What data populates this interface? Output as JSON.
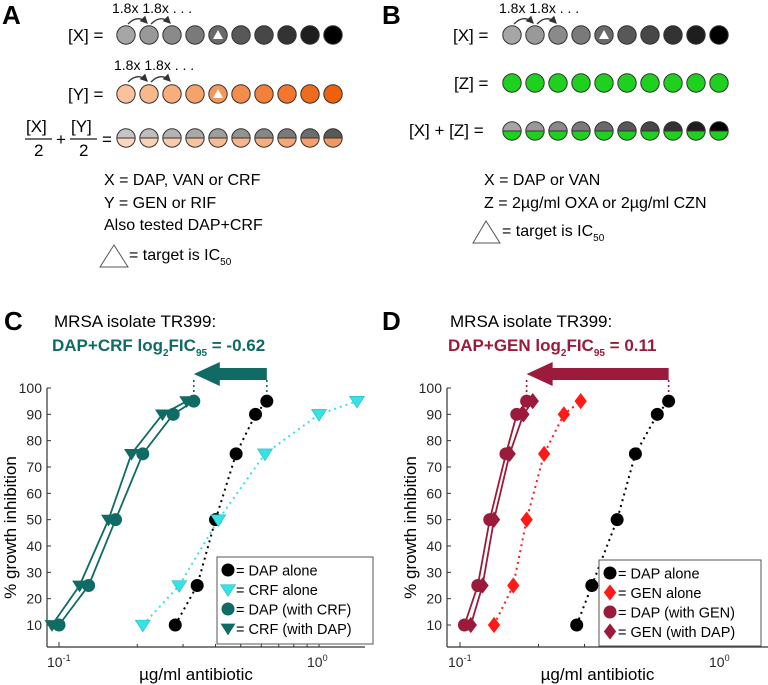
{
  "panels": {
    "A": {
      "letter": "A",
      "step_label": "1.8x 1.8x . . .",
      "row_x_label": "[X] =",
      "row_y_label": "[Y] =",
      "combo_num_x": "[X]",
      "combo_num_y": "[Y]",
      "combo_den": "2",
      "combo_plus": "+",
      "combo_eq": "=",
      "notes": [
        "X = DAP, VAN or CRF",
        "Y = GEN or RIF",
        "Also tested DAP+CRF"
      ],
      "target_label": "= target is IC",
      "target_sub": "50",
      "target_index": 4,
      "well_count": 10,
      "gray_scale": [
        "#a6a6a6",
        "#999999",
        "#8a8a8a",
        "#7a7a7a",
        "#6a6a6a",
        "#585858",
        "#474747",
        "#333333",
        "#1e1e1e",
        "#000000"
      ],
      "orange_scale": [
        "#f9c29c",
        "#f8b88d",
        "#f7ad7c",
        "#f6a26b",
        "#f5975b",
        "#f48c4b",
        "#f3813b",
        "#f2762b",
        "#f06b1c",
        "#ee600c"
      ]
    },
    "B": {
      "letter": "B",
      "step_label": "1.8x 1.8x . . .",
      "row_x_label": "[X] =",
      "row_z_label": "[Z] =",
      "row_combo_label": "[X] + [Z] =",
      "notes": [
        "X = DAP or VAN",
        "Z = 2µg/ml OXA or 2µg/ml CZN"
      ],
      "target_label": "= target is IC",
      "target_sub": "50",
      "target_index": 4,
      "green": "#1fd11f"
    }
  },
  "colors": {
    "teal": "#0f6b64",
    "cyan": "#33e3e8",
    "maroon": "#9a1b3c",
    "red": "#ff1a1a",
    "black": "#000000"
  },
  "chart_data": [
    {
      "type": "scatter",
      "panel": "C",
      "letter": "C",
      "title": "MRSA isolate TR399:",
      "subtitle_main": "DAP+CRF log",
      "subtitle_sub2": "2",
      "subtitle_fic": "FIC",
      "subtitle_sub95": "95",
      "subtitle_value": " = -0.62",
      "log2FIC95": -0.62,
      "xlabel": "µg/ml antibiotic",
      "ylabel": "% growth inhibition",
      "xscale": "log",
      "xlim": [
        0.085,
        1.6
      ],
      "ylim": [
        0,
        100
      ],
      "xticks": [
        {
          "value": 0.1,
          "base": "10",
          "exp": "-1"
        },
        {
          "value": 1,
          "base": "10",
          "exp": "0"
        }
      ],
      "yticks": [
        10,
        20,
        30,
        40,
        50,
        60,
        70,
        80,
        90,
        100
      ],
      "legend_position": "bottom-right",
      "arrow": {
        "from_x": 0.63,
        "to_x": 0.33,
        "color_key": "teal"
      },
      "series": [
        {
          "name": "DAP alone",
          "legend": "= DAP alone",
          "marker": "circle",
          "color_key": "black",
          "line": "dotted",
          "points": [
            [
              0.28,
              10
            ],
            [
              0.34,
              25
            ],
            [
              0.4,
              50
            ],
            [
              0.48,
              75
            ],
            [
              0.57,
              90
            ],
            [
              0.63,
              95
            ]
          ]
        },
        {
          "name": "CRF alone",
          "legend": "= CRF alone",
          "marker": "triangle-down",
          "color_key": "cyan",
          "line": "dotted",
          "points": [
            [
              0.21,
              10
            ],
            [
              0.29,
              25
            ],
            [
              0.41,
              50
            ],
            [
              0.62,
              75
            ],
            [
              1.0,
              90
            ],
            [
              1.4,
              95
            ]
          ]
        },
        {
          "name": "DAP (with CRF)",
          "legend": "= DAP (with CRF)",
          "marker": "circle",
          "color_key": "teal",
          "line": "solid",
          "points": [
            [
              0.1,
              10
            ],
            [
              0.13,
              25
            ],
            [
              0.165,
              50
            ],
            [
              0.21,
              75
            ],
            [
              0.275,
              90
            ],
            [
              0.33,
              95
            ]
          ]
        },
        {
          "name": "CRF (with DAP)",
          "legend": "= CRF (with DAP)",
          "marker": "triangle-down",
          "color_key": "teal",
          "line": "solid",
          "points": [
            [
              0.094,
              10
            ],
            [
              0.12,
              25
            ],
            [
              0.155,
              50
            ],
            [
              0.19,
              75
            ],
            [
              0.25,
              90
            ],
            [
              0.31,
              95
            ]
          ]
        }
      ]
    },
    {
      "type": "scatter",
      "panel": "D",
      "letter": "D",
      "title": "MRSA isolate TR399:",
      "subtitle_main": "DAP+GEN log",
      "subtitle_sub2": "2",
      "subtitle_fic": "FIC",
      "subtitle_sub95": "95",
      "subtitle_value": " = 0.11",
      "log2FIC95": 0.11,
      "xlabel": "µg/ml antibiotic",
      "ylabel": "% growth inhibition",
      "xscale": "log",
      "xlim": [
        0.085,
        1.7
      ],
      "ylim": [
        0,
        100
      ],
      "xticks": [
        {
          "value": 0.1,
          "base": "10",
          "exp": "-1"
        },
        {
          "value": 1,
          "base": "10",
          "exp": "0"
        }
      ],
      "yticks": [
        10,
        20,
        30,
        40,
        50,
        60,
        70,
        80,
        90,
        100
      ],
      "legend_position": "bottom-right",
      "arrow": {
        "from_x": 0.63,
        "to_x": 0.18,
        "color_key": "maroon"
      },
      "series": [
        {
          "name": "DAP alone",
          "legend": "= DAP alone",
          "marker": "circle",
          "color_key": "black",
          "line": "dotted",
          "points": [
            [
              0.28,
              10
            ],
            [
              0.32,
              25
            ],
            [
              0.4,
              50
            ],
            [
              0.47,
              75
            ],
            [
              0.57,
              90
            ],
            [
              0.63,
              95
            ]
          ]
        },
        {
          "name": "GEN alone",
          "legend": "= GEN alone",
          "marker": "diamond",
          "color_key": "red",
          "line": "dotted",
          "points": [
            [
              0.135,
              10
            ],
            [
              0.16,
              25
            ],
            [
              0.18,
              50
            ],
            [
              0.21,
              75
            ],
            [
              0.25,
              90
            ],
            [
              0.29,
              95
            ]
          ]
        },
        {
          "name": "DAP (with GEN)",
          "legend": "= DAP (with GEN)",
          "marker": "circle",
          "color_key": "maroon",
          "line": "solid",
          "points": [
            [
              0.104,
              10
            ],
            [
              0.117,
              25
            ],
            [
              0.13,
              50
            ],
            [
              0.15,
              75
            ],
            [
              0.165,
              90
            ],
            [
              0.18,
              95
            ]
          ]
        },
        {
          "name": "GEN (with DAP)",
          "legend": "= GEN (with DAP)",
          "marker": "diamond",
          "color_key": "maroon",
          "line": "solid",
          "points": [
            [
              0.11,
              10
            ],
            [
              0.122,
              25
            ],
            [
              0.135,
              50
            ],
            [
              0.155,
              75
            ],
            [
              0.175,
              90
            ],
            [
              0.19,
              95
            ]
          ]
        }
      ]
    }
  ]
}
